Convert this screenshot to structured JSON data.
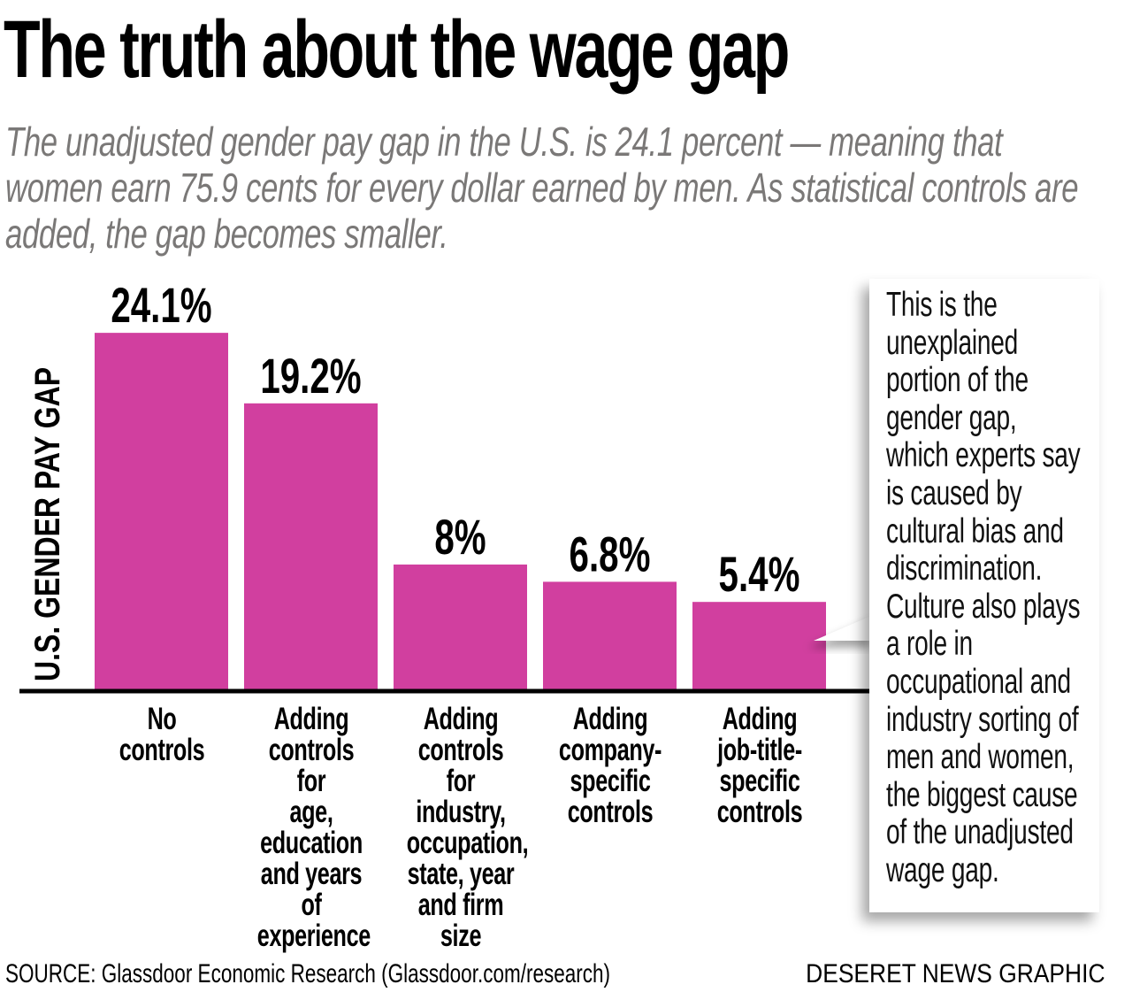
{
  "header": {
    "title": "The truth about the wage gap",
    "subtitle": "The unadjusted gender pay gap in the U.S. is 24.1 percent — meaning that women earn 75.9 cents for every dollar earned by men. As statistical controls are added, the gap becomes smaller."
  },
  "chart_data": {
    "type": "bar",
    "title": "The truth about the wage gap",
    "xlabel": "",
    "ylabel": "U.S. GENDER PAY GAP",
    "categories": [
      "No controls",
      "Adding controls for age, education and years of experience",
      "Adding controls for industry, occupation, state, year and firm size",
      "Adding company-specific controls",
      "Adding job-title-specific controls"
    ],
    "category_lines": [
      "No controls",
      "Adding\ncontrols for\nage,\neducation\nand years\nof\nexperience",
      "Adding\ncontrols for\nindustry,\noccupation,\nstate, year\nand firm\nsize",
      "Adding\ncompany-\nspecific\ncontrols",
      "Adding\njob-title-\nspecific\ncontrols"
    ],
    "values": [
      24.1,
      19.2,
      8,
      6.8,
      5.4
    ],
    "value_labels": [
      "24.1%",
      "19.2%",
      "8%",
      "6.8%",
      "5.4%"
    ],
    "unit": "%",
    "grid": false,
    "legend": "none",
    "bar_color": "#d13f9f",
    "axis_color": "#000000"
  },
  "callout": {
    "text": "This is the\nunexplained\nportion of the\ngender gap,\nwhich experts say\nis caused by\ncultural bias and\ndiscrimination.\nCulture also plays\na role in\noccupational and\nindustry sorting of\nmen and women,\nthe biggest cause\nof the unadjusted\nwage gap.",
    "points_to": "Adding job-title-specific controls"
  },
  "footer": {
    "source": "SOURCE: Glassdoor Economic Research (Glassdoor.com/research)",
    "credit": "DESERET NEWS GRAPHIC"
  }
}
